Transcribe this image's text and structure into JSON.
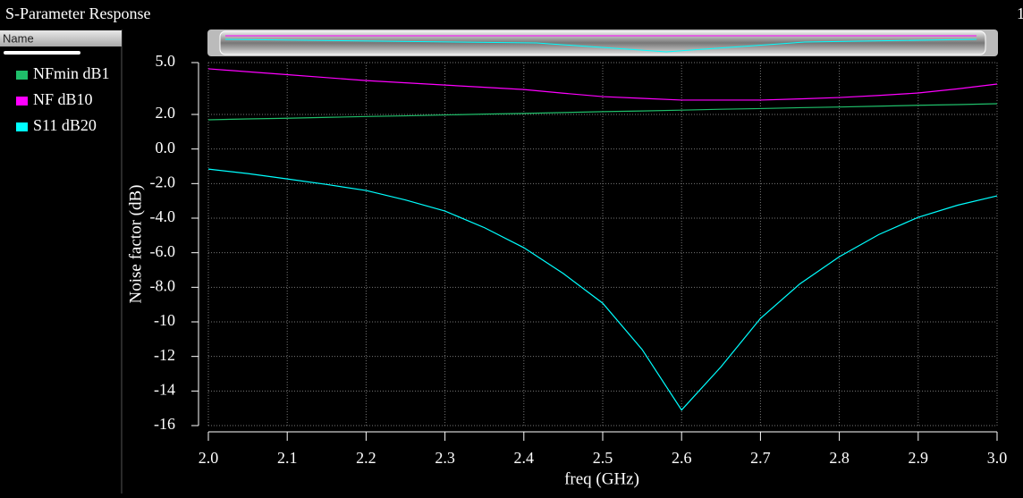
{
  "window_title": "S-Parameter Response",
  "corner_label": "1",
  "legend_header": "Name",
  "chart_data": {
    "type": "line",
    "xlabel": "freq (GHz)",
    "ylabel": "Noise factor (dB)",
    "x": [
      2.0,
      2.05,
      2.1,
      2.15,
      2.2,
      2.25,
      2.3,
      2.35,
      2.4,
      2.45,
      2.5,
      2.55,
      2.6,
      2.65,
      2.7,
      2.75,
      2.8,
      2.85,
      2.9,
      2.95,
      3.0
    ],
    "series": [
      {
        "name": "NFmin dB1",
        "color": "#1fbf6a",
        "values": [
          1.69,
          1.74,
          1.78,
          1.83,
          1.88,
          1.92,
          1.97,
          2.02,
          2.06,
          2.11,
          2.16,
          2.2,
          2.25,
          2.3,
          2.34,
          2.39,
          2.43,
          2.48,
          2.53,
          2.57,
          2.62
        ]
      },
      {
        "name": "NF dB10",
        "color": "#ff00ff",
        "values": [
          4.64,
          4.47,
          4.3,
          4.13,
          3.96,
          3.83,
          3.7,
          3.57,
          3.44,
          3.23,
          3.03,
          2.93,
          2.83,
          2.83,
          2.83,
          2.9,
          2.98,
          3.1,
          3.24,
          3.48,
          3.76
        ]
      },
      {
        "name": "S11 dB20",
        "color": "#00ffff",
        "values": [
          -1.16,
          -1.42,
          -1.73,
          -2.05,
          -2.4,
          -2.95,
          -3.59,
          -4.55,
          -5.71,
          -7.2,
          -8.92,
          -11.6,
          -15.1,
          -12.6,
          -9.8,
          -7.8,
          -6.23,
          -4.95,
          -3.95,
          -3.25,
          -2.71
        ]
      }
    ],
    "xlim": [
      2.0,
      3.0
    ],
    "xticks": [
      {
        "value": 2.0,
        "label": "2.0"
      },
      2.1,
      2.2,
      2.3,
      2.4,
      2.5,
      2.6,
      2.7,
      2.8,
      2.9,
      {
        "value": 3.0,
        "label": "3.0"
      }
    ],
    "ylim": [
      -16,
      5
    ],
    "yticks": [
      {
        "value": 5,
        "label": "5.0"
      },
      {
        "value": 2,
        "label": "2.0"
      },
      {
        "value": 0,
        "label": "0.0"
      },
      {
        "value": -2,
        "label": "-2.0"
      },
      {
        "value": -4,
        "label": "-4.0"
      },
      {
        "value": -6,
        "label": "-6.0"
      },
      {
        "value": -8,
        "label": "-8.0"
      },
      -10,
      -12,
      -14,
      -16
    ],
    "grid": true
  }
}
